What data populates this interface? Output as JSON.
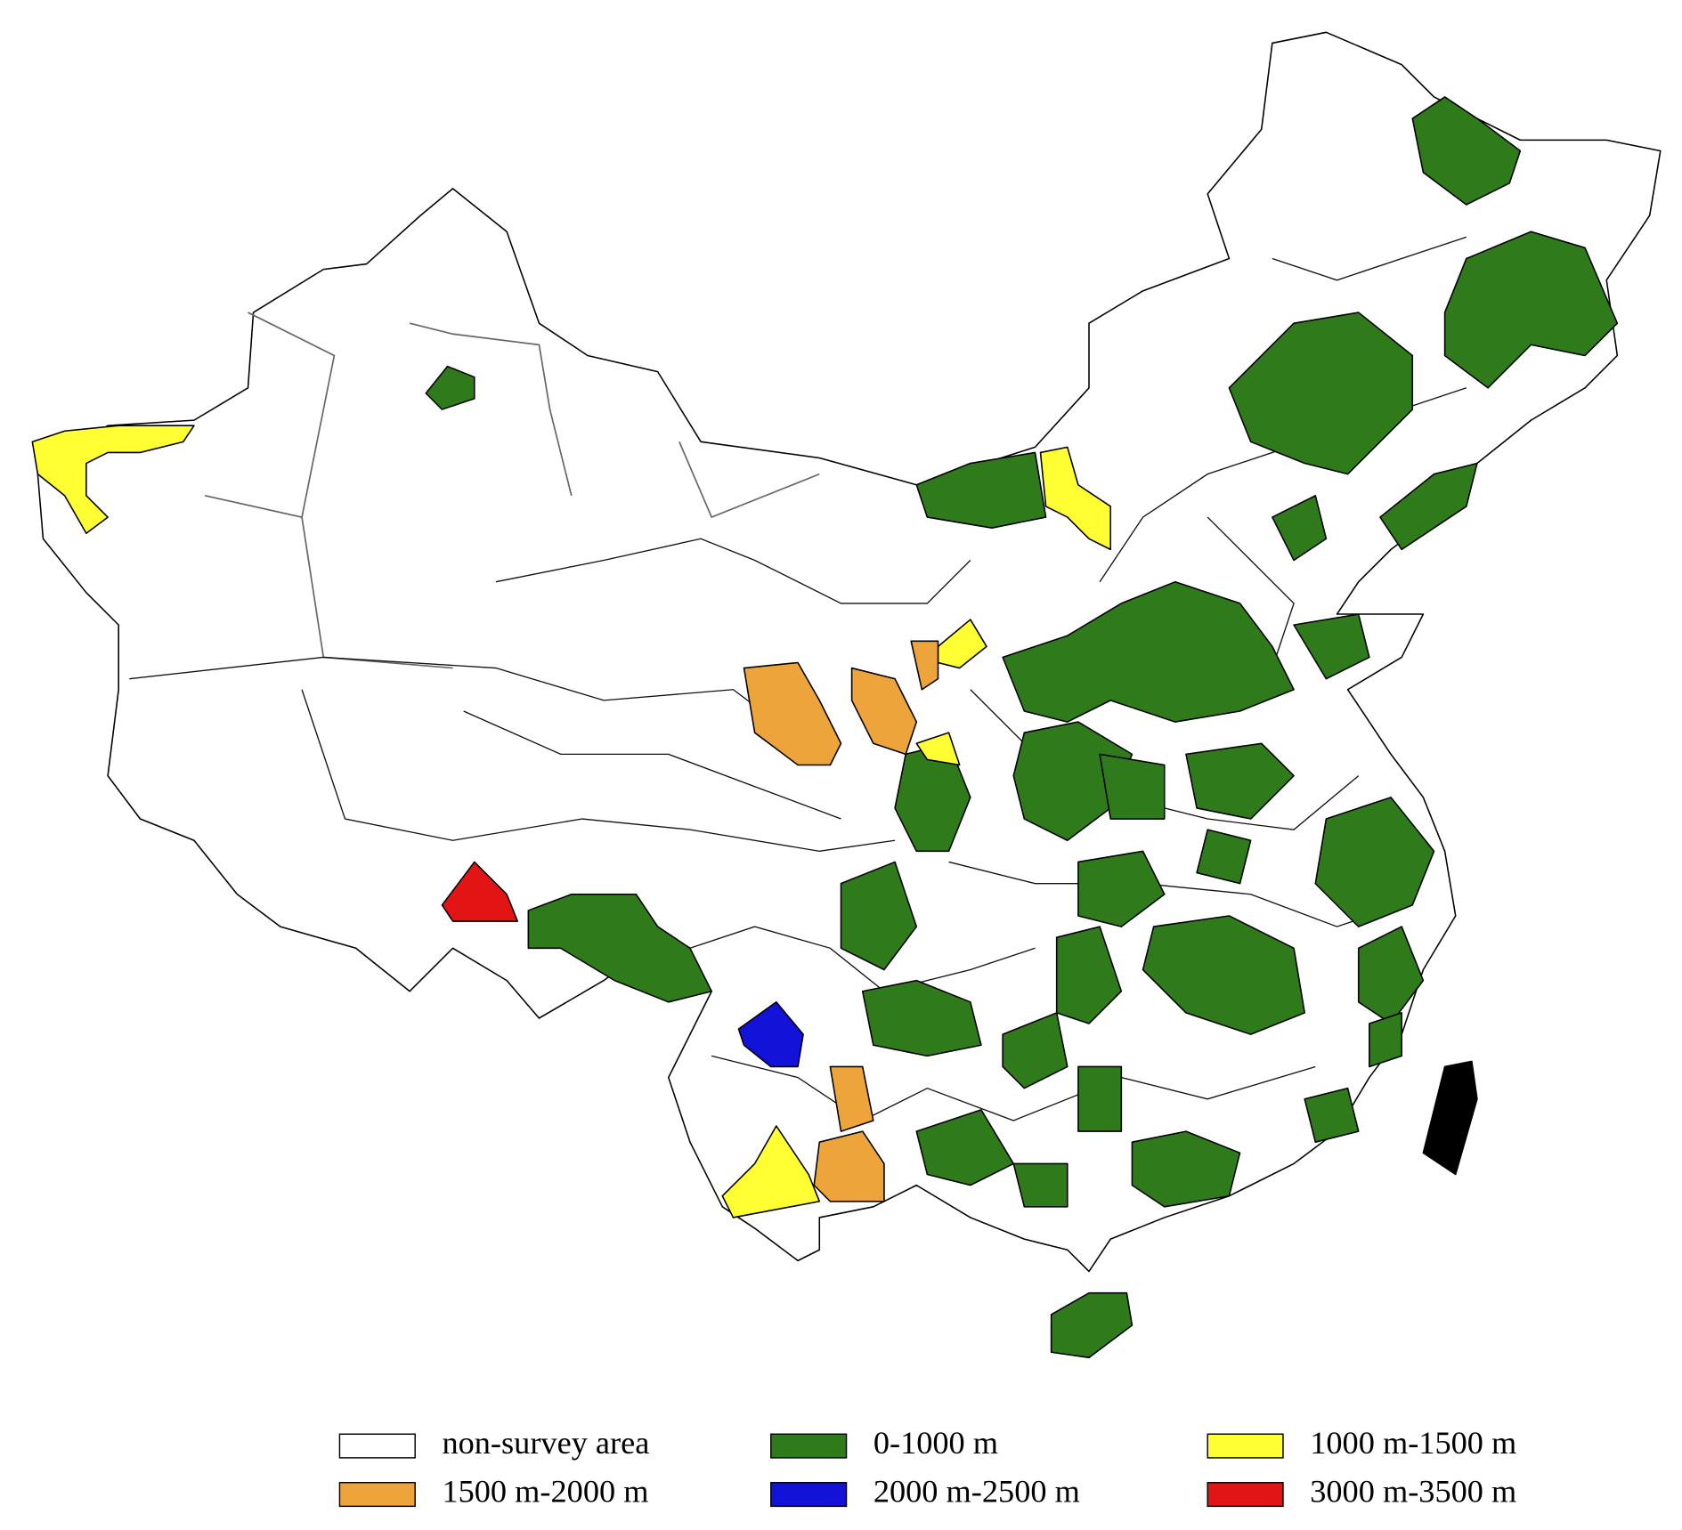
{
  "legend": [
    {
      "label": "non-survey area",
      "color": "#ffffff"
    },
    {
      "label": "0-1000 m",
      "color": "#2f7a1a"
    },
    {
      "label": "1000 m-1500 m",
      "color": "#ffff33"
    },
    {
      "label": "1500 m-2000 m",
      "color": "#eda43a"
    },
    {
      "label": "2000 m-2500 m",
      "color": "#1212d8"
    },
    {
      "label": "3000 m-3500 m",
      "color": "#e31414"
    }
  ]
}
